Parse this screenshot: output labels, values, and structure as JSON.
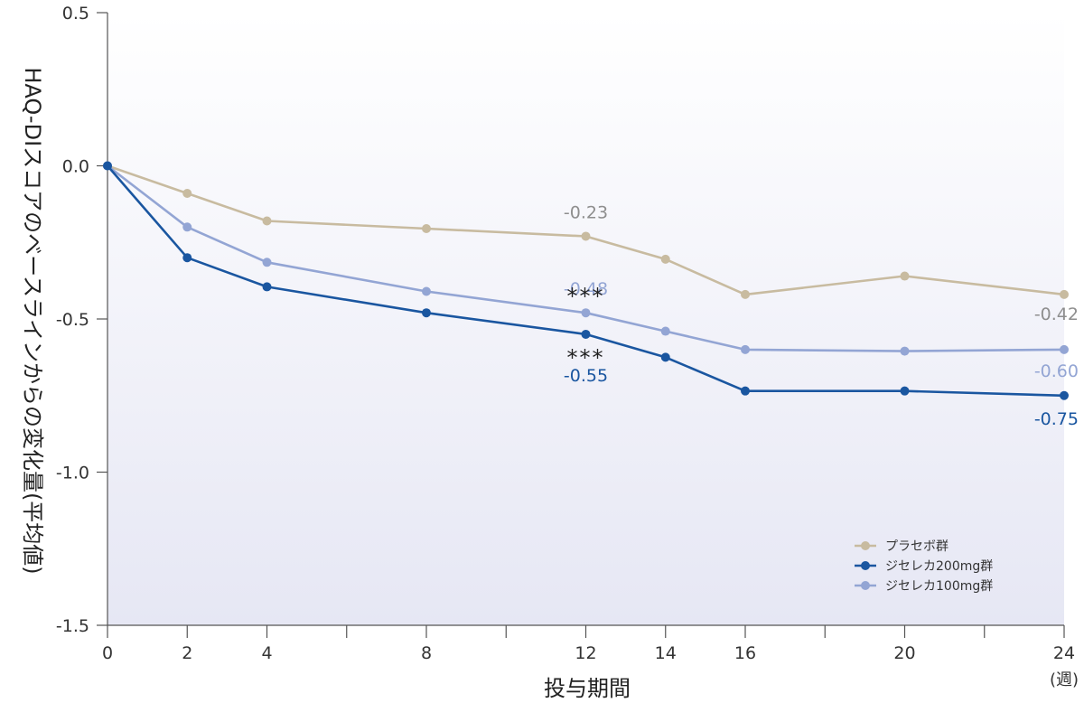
{
  "chart_data": {
    "type": "line",
    "xlabel": "投与期間",
    "x_unit": "(週)",
    "ylabel": "HAQ-DIスコアのベースラインからの変化量(平均値)",
    "x_ticks": [
      0,
      2,
      4,
      8,
      12,
      14,
      16,
      20,
      24
    ],
    "x_minor_ticks": [
      6,
      10,
      18,
      22
    ],
    "xlim": [
      0,
      24
    ],
    "ylim": [
      -1.5,
      0.5
    ],
    "y_ticks": [
      {
        "value": 0.5,
        "label": "0.5"
      },
      {
        "value": 0.0,
        "label": "0.0"
      },
      {
        "value": -0.5,
        "label": "-0.5"
      },
      {
        "value": -1.0,
        "label": "-1.0"
      },
      {
        "value": -1.5,
        "label": "-1.5"
      }
    ],
    "series": [
      {
        "name": "プラセボ群",
        "color": "#c8bba0",
        "x": [
          0,
          2,
          4,
          8,
          12,
          14,
          16,
          20,
          24
        ],
        "values": [
          0.0,
          -0.09,
          -0.18,
          -0.205,
          -0.23,
          -0.305,
          -0.42,
          -0.36,
          -0.42
        ]
      },
      {
        "name": "ジセレカ200mg群",
        "color": "#1a56a0",
        "x": [
          0,
          2,
          4,
          8,
          12,
          14,
          16,
          20,
          24
        ],
        "values": [
          0.0,
          -0.3,
          -0.395,
          -0.48,
          -0.55,
          -0.625,
          -0.735,
          -0.735,
          -0.75
        ]
      },
      {
        "name": "ジセレカ100mg群",
        "color": "#93a5d4",
        "x": [
          0,
          2,
          4,
          8,
          12,
          14,
          16,
          20,
          24
        ],
        "values": [
          0.0,
          -0.2,
          -0.315,
          -0.41,
          -0.48,
          -0.54,
          -0.6,
          -0.605,
          -0.6
        ]
      }
    ],
    "annotations": [
      {
        "text": "-0.23",
        "series": 0,
        "x": 12,
        "position": "above",
        "color": "#8e8e8e"
      },
      {
        "text": "-0.48",
        "series": 2,
        "x": 12,
        "position": "above",
        "color": "#93a5d4"
      },
      {
        "text": "***",
        "series": 2,
        "x": 12,
        "position": "above-sig",
        "color": "#222222"
      },
      {
        "text": "***",
        "series": 1,
        "x": 12,
        "position": "below-sig",
        "color": "#222222"
      },
      {
        "text": "-0.55",
        "series": 1,
        "x": 12,
        "position": "below",
        "color": "#1a56a0"
      },
      {
        "text": "-0.42",
        "series": 0,
        "x": 24,
        "position": "below",
        "color": "#8e8e8e"
      },
      {
        "text": "-0.60",
        "series": 2,
        "x": 24,
        "position": "above",
        "color": "#93a5d4"
      },
      {
        "text": "-0.75",
        "series": 1,
        "x": 24,
        "position": "below",
        "color": "#1a56a0"
      }
    ],
    "legend": {
      "placement": "bottom-right",
      "order": [
        0,
        1,
        2
      ]
    },
    "background_gradient": {
      "from": "#ffffff",
      "to": "#e6e7f4"
    },
    "grid": false
  }
}
